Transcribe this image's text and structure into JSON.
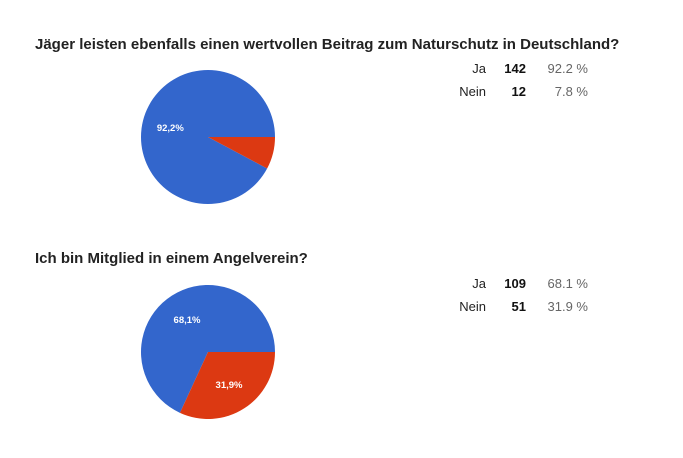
{
  "questions": [
    {
      "title": "Jäger leisten ebenfalls einen wertvollen Beitrag zum Naturschutz in Deutschland?",
      "rows": [
        {
          "label": "Ja",
          "count": "142",
          "percent": "92.2 %"
        },
        {
          "label": "Nein",
          "count": "12",
          "percent": "7.8 %"
        }
      ]
    },
    {
      "title": "Ich bin Mitglied in einem Angelverein?",
      "rows": [
        {
          "label": "Ja",
          "count": "109",
          "percent": "68.1 %"
        },
        {
          "label": "Nein",
          "count": "51",
          "percent": "31.9 %"
        }
      ]
    }
  ],
  "chart_data": [
    {
      "type": "pie",
      "categories": [
        "Ja",
        "Nein"
      ],
      "values": [
        142,
        12
      ],
      "slice_labels": [
        "92,2%",
        ""
      ],
      "colors": [
        "#3366cc",
        "#dc3912"
      ]
    },
    {
      "type": "pie",
      "categories": [
        "Ja",
        "Nein"
      ],
      "values": [
        109,
        51
      ],
      "slice_labels": [
        "68,1%",
        "31,9%"
      ],
      "colors": [
        "#3366cc",
        "#dc3912"
      ]
    }
  ]
}
